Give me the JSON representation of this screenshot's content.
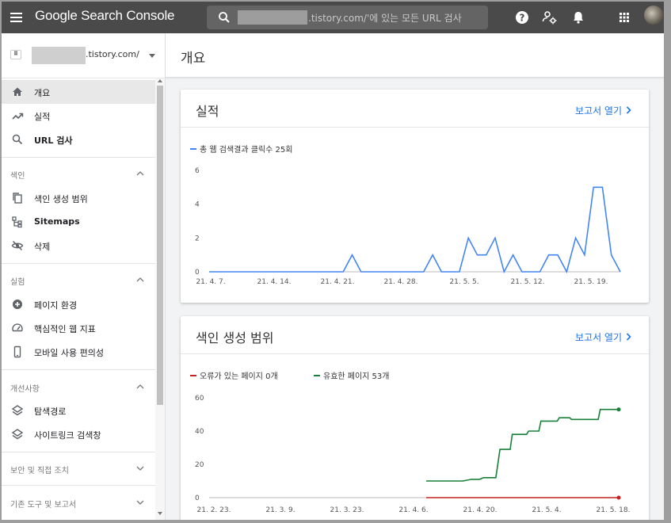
{
  "app": {
    "title": "Google Search Console",
    "search_placeholder": ".tistory.com/'에 있는 모든 URL 검사"
  },
  "property": {
    "domain_suffix": ".tistory.com/"
  },
  "sidebar": {
    "items": [
      {
        "label": "개요",
        "icon": "home-icon",
        "active": true
      },
      {
        "label": "실적",
        "icon": "trending-up-icon"
      },
      {
        "label": "URL 검사",
        "icon": "search-icon"
      }
    ],
    "sections": [
      {
        "label": "색인",
        "items": [
          {
            "label": "색인 생성 범위",
            "icon": "copy-icon"
          },
          {
            "label": "Sitemaps",
            "icon": "sitemap-icon"
          },
          {
            "label": "삭제",
            "icon": "eye-off-icon"
          }
        ]
      },
      {
        "label": "실험",
        "items": [
          {
            "label": "페이지 환경",
            "icon": "plus-circle-icon"
          },
          {
            "label": "핵심적인 웹 지표",
            "icon": "speed-gauge-icon"
          },
          {
            "label": "모바일 사용 편의성",
            "icon": "phone-icon"
          }
        ]
      },
      {
        "label": "개선사항",
        "items": [
          {
            "label": "탐색경로",
            "icon": "layers-icon"
          },
          {
            "label": "사이트링크 검색창",
            "icon": "layers-icon"
          }
        ]
      },
      {
        "label": "보안 및 직접 조치",
        "items": []
      },
      {
        "label": "기존 도구 및 보고서",
        "items": []
      }
    ]
  },
  "main": {
    "title": "개요",
    "report_link": "보고서 열기"
  },
  "colors": {
    "accent_blue": "#1a73e8",
    "performance_line": "#4285f4",
    "error_red": "#c5221f",
    "valid_green": "#188038",
    "topbar": "#4a4a4a"
  },
  "chart_data": [
    {
      "type": "line",
      "title": "실적",
      "series": [
        {
          "name": "총 웹 검색결과 클릭수 25회",
          "values": [
            0,
            0,
            0,
            0,
            0,
            0,
            0,
            0,
            0,
            0,
            0,
            0,
            0,
            0,
            0,
            0,
            1,
            0,
            0,
            0,
            0,
            0,
            0,
            0,
            0,
            1,
            0,
            0,
            0,
            2,
            1,
            1,
            2,
            0,
            1,
            0,
            0,
            0,
            1,
            1,
            0,
            2,
            1,
            5,
            5,
            1,
            0
          ]
        }
      ],
      "x_ticks": [
        "21. 4. 7.",
        "21. 4. 14.",
        "21. 4. 21.",
        "21. 4. 28.",
        "21. 5. 5.",
        "21. 5. 12.",
        "21. 5. 19."
      ],
      "y_ticks": [
        0,
        2,
        4,
        6
      ],
      "ylim": [
        0,
        6
      ],
      "grid": false,
      "legend": "top-left"
    },
    {
      "type": "line",
      "title": "색인 생성 범위",
      "x_ticks": [
        "21. 2. 23.",
        "21. 3. 9.",
        "21. 3. 23.",
        "21. 4. 6.",
        "21. 4. 20.",
        "21. 5. 4.",
        "21. 5. 18."
      ],
      "y_ticks": [
        0,
        20,
        40,
        60
      ],
      "ylim": [
        0,
        60
      ],
      "grid": false,
      "legend": "top-left",
      "series": [
        {
          "name": "오류가 있는 페이지 0개",
          "points": [
            [
              0.0,
              0
            ],
            [
              1.0,
              0
            ]
          ]
        },
        {
          "name": "유효한 페이지 53개",
          "points": [
            [
              0.53,
              10
            ],
            [
              0.62,
              10
            ],
            [
              0.64,
              11
            ],
            [
              0.66,
              11
            ],
            [
              0.67,
              12
            ],
            [
              0.7,
              12
            ],
            [
              0.71,
              29
            ],
            [
              0.735,
              29
            ],
            [
              0.74,
              38
            ],
            [
              0.775,
              38
            ],
            [
              0.78,
              40
            ],
            [
              0.805,
              40
            ],
            [
              0.81,
              46
            ],
            [
              0.85,
              46
            ],
            [
              0.855,
              48
            ],
            [
              0.88,
              48
            ],
            [
              0.885,
              47
            ],
            [
              0.95,
              47
            ],
            [
              0.955,
              53
            ],
            [
              1.0,
              53
            ]
          ]
        }
      ]
    }
  ]
}
